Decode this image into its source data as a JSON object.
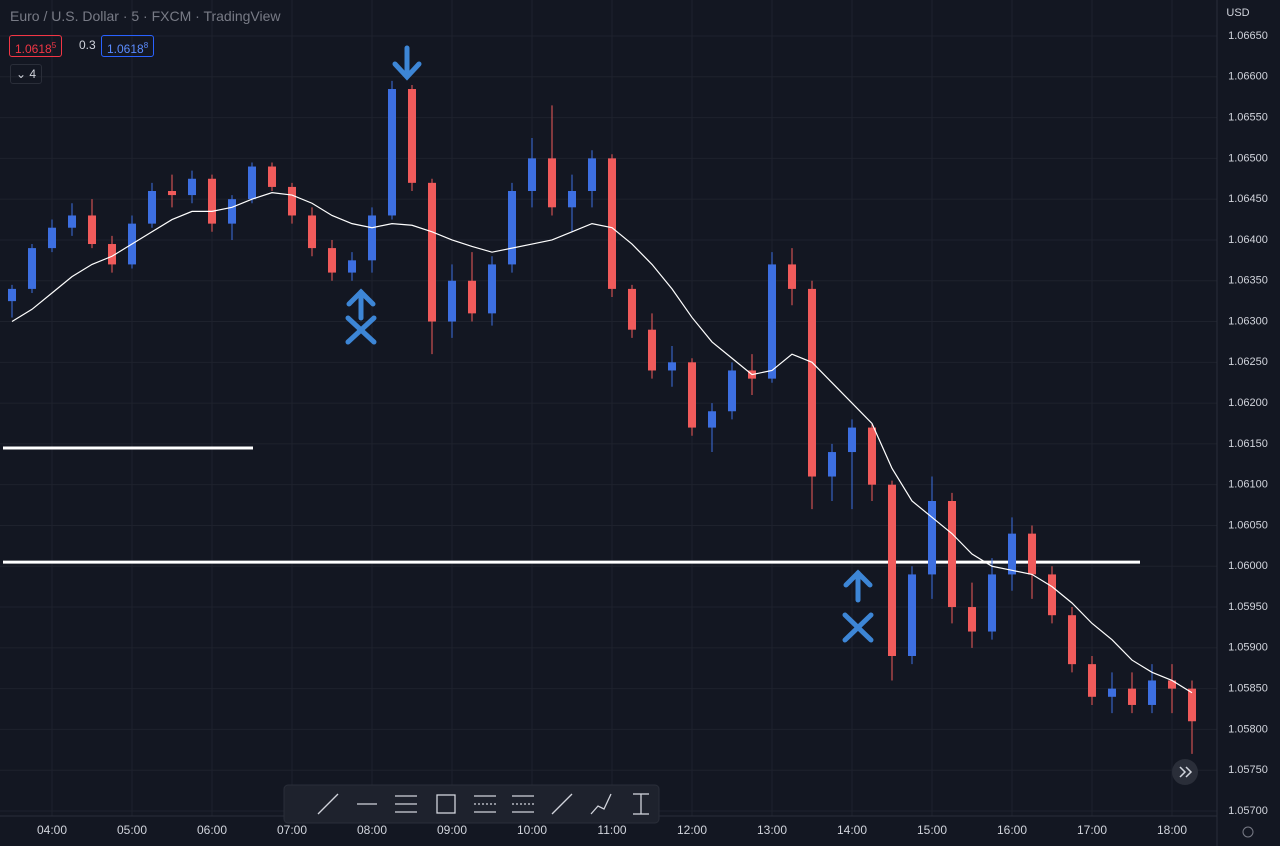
{
  "header": {
    "title": "Euro / U.S. Dollar · 5 · FXCM · TradingView",
    "bid": {
      "main": "1.0618",
      "sup": "5"
    },
    "spread": "0.3",
    "ask": {
      "main": "1.0618",
      "sup": "8"
    },
    "indicators": "4",
    "currency": "USD"
  },
  "chart_data": {
    "type": "candlestick",
    "categories": [
      null,
      null,
      "04:00",
      null,
      null,
      null,
      "05:00",
      null,
      null,
      null,
      "06:00",
      null,
      null,
      null,
      "07:00",
      null,
      null,
      null,
      "08:00",
      null,
      null,
      null,
      "09:00",
      null,
      null,
      null,
      "10:00",
      null,
      null,
      null,
      "11:00",
      null,
      null,
      null,
      "12:00",
      null,
      null,
      null,
      "13:00",
      null,
      null,
      null,
      "14:00",
      null,
      null,
      null,
      "15:00",
      null,
      null,
      null,
      "16:00",
      null,
      null,
      null,
      "17:00",
      null,
      null,
      null,
      "18:00",
      null
    ],
    "open": [
      1.06325,
      1.0634,
      1.0639,
      1.06415,
      1.0643,
      1.06395,
      1.0637,
      1.0642,
      1.0646,
      1.06455,
      1.06475,
      1.0642,
      1.0645,
      1.0649,
      1.06465,
      1.0643,
      1.0639,
      1.0636,
      1.06375,
      1.0643,
      1.06585,
      1.0647,
      1.063,
      1.0635,
      1.0631,
      1.0637,
      1.0646,
      1.065,
      1.0644,
      1.0646,
      1.065,
      1.0634,
      1.0629,
      1.0624,
      1.0625,
      1.0617,
      1.0619,
      1.0624,
      1.0623,
      1.0637,
      1.0634,
      1.0611,
      1.0614,
      1.0617,
      1.061,
      1.0589,
      1.0599,
      1.0608,
      1.0595,
      1.0592,
      1.0599,
      1.0604,
      1.0599,
      1.0594,
      1.0588,
      1.0584,
      1.0585,
      1.0583,
      1.0586,
      1.0585
    ],
    "high": [
      1.06345,
      1.06395,
      1.06425,
      1.06445,
      1.0645,
      1.06405,
      1.0643,
      1.0647,
      1.0648,
      1.06485,
      1.0648,
      1.06455,
      1.06495,
      1.06495,
      1.0647,
      1.0644,
      1.064,
      1.06385,
      1.0644,
      1.06595,
      1.0659,
      1.06475,
      1.0637,
      1.06385,
      1.0638,
      1.0647,
      1.06525,
      1.06565,
      1.0648,
      1.0651,
      1.06505,
      1.06345,
      1.0631,
      1.0627,
      1.06255,
      1.062,
      1.0625,
      1.0626,
      1.06385,
      1.0639,
      1.0635,
      1.0615,
      1.0618,
      1.06175,
      1.06105,
      1.06,
      1.0611,
      1.0609,
      1.0598,
      1.0601,
      1.0606,
      1.0605,
      1.06,
      1.0595,
      1.0589,
      1.0587,
      1.0587,
      1.0588,
      1.0588,
      1.0586
    ],
    "low": [
      1.06305,
      1.06335,
      1.06385,
      1.06405,
      1.0639,
      1.0636,
      1.06365,
      1.06415,
      1.0644,
      1.06445,
      1.0641,
      1.064,
      1.06445,
      1.0646,
      1.0642,
      1.0638,
      1.0635,
      1.0635,
      1.0636,
      1.06425,
      1.0646,
      1.0626,
      1.0628,
      1.063,
      1.06295,
      1.0636,
      1.0644,
      1.0643,
      1.0641,
      1.0644,
      1.0633,
      1.0628,
      1.0623,
      1.0622,
      1.0616,
      1.0614,
      1.0618,
      1.0621,
      1.06225,
      1.0632,
      1.0607,
      1.0608,
      1.0607,
      1.0608,
      1.0586,
      1.0588,
      1.0596,
      1.0593,
      1.059,
      1.0591,
      1.0597,
      1.0596,
      1.0593,
      1.0587,
      1.0583,
      1.0582,
      1.0582,
      1.0582,
      1.0582,
      1.0577
    ],
    "close": [
      1.0634,
      1.0639,
      1.06415,
      1.0643,
      1.06395,
      1.0637,
      1.0642,
      1.0646,
      1.06455,
      1.06475,
      1.0642,
      1.0645,
      1.0649,
      1.06465,
      1.0643,
      1.0639,
      1.0636,
      1.06375,
      1.0643,
      1.06585,
      1.0647,
      1.063,
      1.0635,
      1.0631,
      1.0637,
      1.0646,
      1.065,
      1.0644,
      1.0646,
      1.065,
      1.0634,
      1.0629,
      1.0624,
      1.0625,
      1.0617,
      1.0619,
      1.0624,
      1.0623,
      1.0637,
      1.0634,
      1.0611,
      1.0614,
      1.0617,
      1.061,
      1.0589,
      1.0599,
      1.0608,
      1.0595,
      1.0592,
      1.0599,
      1.0604,
      1.0599,
      1.0594,
      1.0588,
      1.0584,
      1.0585,
      1.0583,
      1.0586,
      1.0585,
      1.0581
    ],
    "ma": [
      1.063,
      1.06315,
      1.06335,
      1.06355,
      1.0637,
      1.0638,
      1.06395,
      1.0641,
      1.06425,
      1.06435,
      1.06435,
      1.0644,
      1.0645,
      1.06458,
      1.06455,
      1.06445,
      1.0643,
      1.0642,
      1.06415,
      1.0642,
      1.06418,
      1.0641,
      1.064,
      1.06392,
      1.06385,
      1.0639,
      1.06395,
      1.064,
      1.0641,
      1.0642,
      1.06415,
      1.06395,
      1.0637,
      1.0634,
      1.06305,
      1.06275,
      1.06255,
      1.06235,
      1.0624,
      1.0626,
      1.0625,
      1.06225,
      1.062,
      1.06175,
      1.0612,
      1.0608,
      1.0606,
      1.0604,
      1.06015,
      1.06,
      1.05995,
      1.0599,
      1.05975,
      1.05955,
      1.0593,
      1.0591,
      1.05885,
      1.0587,
      1.0586,
      1.05845
    ],
    "up_color": "#3d6fe0",
    "down_color": "#f05b5b",
    "ma_color": "#ffffff",
    "levels": [
      1.06145,
      1.06005
    ],
    "ylim": [
      1.057,
      1.0665
    ],
    "yticks": [
      {
        "value": 1.0665,
        "label": "1.06650"
      },
      {
        "value": 1.066,
        "label": "1.06600"
      },
      {
        "value": 1.0655,
        "label": "1.06550"
      },
      {
        "value": 1.065,
        "label": "1.06500"
      },
      {
        "value": 1.0645,
        "label": "1.06450"
      },
      {
        "value": 1.064,
        "label": "1.06400"
      },
      {
        "value": 1.0635,
        "label": "1.06350"
      },
      {
        "value": 1.063,
        "label": "1.06300"
      },
      {
        "value": 1.0625,
        "label": "1.06250"
      },
      {
        "value": 1.062,
        "label": "1.06200"
      },
      {
        "value": 1.0615,
        "label": "1.06150"
      },
      {
        "value": 1.061,
        "label": "1.06100"
      },
      {
        "value": 1.0605,
        "label": "1.06050"
      },
      {
        "value": 1.06,
        "label": "1.06000"
      },
      {
        "value": 1.0595,
        "label": "1.05950"
      },
      {
        "value": 1.059,
        "label": "1.05900"
      },
      {
        "value": 1.0585,
        "label": "1.05850"
      },
      {
        "value": 1.058,
        "label": "1.05800"
      },
      {
        "value": 1.0575,
        "label": "1.05750"
      },
      {
        "value": 1.057,
        "label": "1.05700"
      }
    ],
    "grid": true
  }
}
